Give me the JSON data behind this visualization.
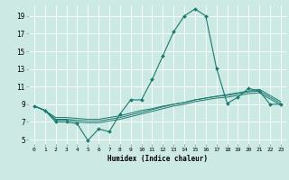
{
  "title": "",
  "xlabel": "Humidex (Indice chaleur)",
  "bg_color": "#cce9e4",
  "line_color": "#1a7a6e",
  "grid_color": "#ffffff",
  "xlim": [
    -0.5,
    23.5
  ],
  "ylim": [
    4.5,
    20.2
  ],
  "xticks": [
    0,
    1,
    2,
    3,
    4,
    5,
    6,
    7,
    8,
    9,
    10,
    11,
    12,
    13,
    14,
    15,
    16,
    17,
    18,
    19,
    20,
    21,
    22,
    23
  ],
  "yticks": [
    5,
    7,
    9,
    11,
    13,
    15,
    17,
    19
  ],
  "line1_x": [
    0,
    1,
    2,
    3,
    4,
    5,
    6,
    7,
    8,
    9,
    10,
    11,
    12,
    13,
    14,
    15,
    16,
    17,
    18,
    19,
    20,
    21,
    22,
    23
  ],
  "line1_y": [
    8.8,
    8.3,
    7.0,
    7.0,
    6.8,
    4.9,
    6.2,
    5.9,
    7.9,
    9.5,
    9.5,
    11.8,
    14.5,
    17.2,
    19.0,
    19.8,
    19.0,
    13.1,
    9.1,
    9.8,
    10.8,
    10.5,
    9.0,
    9.0
  ],
  "line2_x": [
    0,
    1,
    2,
    3,
    4,
    5,
    6,
    7,
    8,
    9,
    10,
    11,
    12,
    13,
    14,
    15,
    16,
    17,
    18,
    19,
    20,
    21,
    22,
    23
  ],
  "line2_y": [
    8.8,
    8.3,
    7.5,
    7.5,
    7.4,
    7.3,
    7.3,
    7.5,
    7.7,
    8.0,
    8.3,
    8.5,
    8.8,
    9.0,
    9.2,
    9.5,
    9.7,
    9.9,
    10.1,
    10.3,
    10.5,
    10.7,
    10.0,
    9.3
  ],
  "line3_x": [
    0,
    1,
    2,
    3,
    4,
    5,
    6,
    7,
    8,
    9,
    10,
    11,
    12,
    13,
    14,
    15,
    16,
    17,
    18,
    19,
    20,
    21,
    22,
    23
  ],
  "line3_y": [
    8.8,
    8.3,
    7.3,
    7.3,
    7.2,
    7.1,
    7.1,
    7.3,
    7.5,
    7.8,
    8.1,
    8.4,
    8.7,
    9.0,
    9.2,
    9.5,
    9.7,
    9.9,
    10.0,
    10.2,
    10.4,
    10.5,
    9.8,
    9.1
  ],
  "line4_x": [
    0,
    1,
    2,
    3,
    4,
    5,
    6,
    7,
    8,
    9,
    10,
    11,
    12,
    13,
    14,
    15,
    16,
    17,
    18,
    19,
    20,
    21,
    22,
    23
  ],
  "line4_y": [
    8.8,
    8.3,
    7.2,
    7.2,
    7.0,
    6.9,
    6.9,
    7.1,
    7.3,
    7.6,
    7.9,
    8.2,
    8.5,
    8.8,
    9.0,
    9.3,
    9.5,
    9.7,
    9.8,
    10.0,
    10.2,
    10.3,
    9.6,
    8.9
  ]
}
